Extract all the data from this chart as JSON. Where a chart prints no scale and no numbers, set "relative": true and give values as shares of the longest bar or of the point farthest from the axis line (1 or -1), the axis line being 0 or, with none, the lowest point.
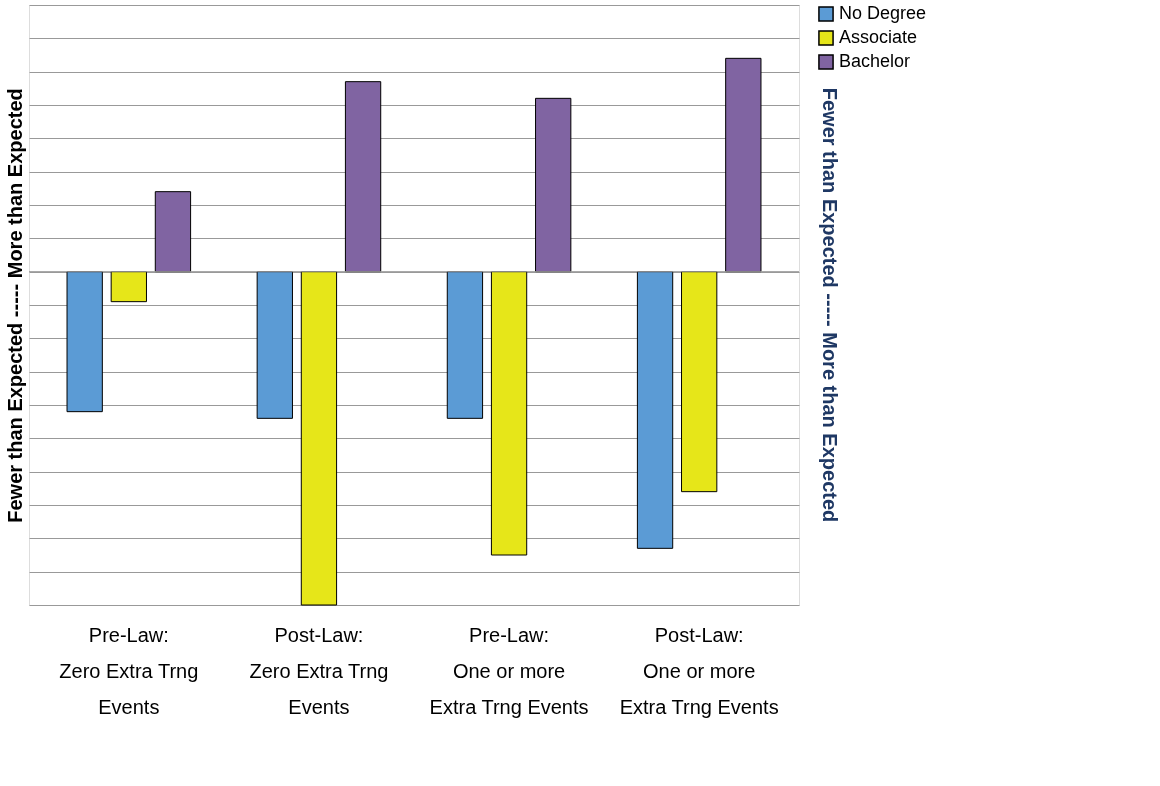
{
  "chart_data": {
    "type": "bar",
    "relative": true,
    "ylabel": "Fewer than Expected -----  More than Expected",
    "y2label": "Fewer than Expected -----  More than Expected",
    "categories": [
      "Pre-Law:\nZero Extra Trng\nEvents",
      "Post-Law:\nZero Extra Trng\nEvents",
      "Pre-Law:\nOne or more\nExtra Trng Events",
      "Post-Law:\nOne or more\nExtra Trng Events"
    ],
    "series": [
      {
        "name": "No Degree",
        "color": "#5b9bd5",
        "values": [
          -0.42,
          -0.44,
          -0.44,
          -0.83
        ]
      },
      {
        "name": "Associate",
        "color": "#e6e619",
        "values": [
          -0.09,
          -1,
          -0.85,
          -0.66
        ]
      },
      {
        "name": "Bachelor",
        "color": "#8064a2",
        "values": [
          0.24,
          0.57,
          0.52,
          0.64
        ]
      }
    ],
    "grid": "y",
    "legend": "top right"
  }
}
